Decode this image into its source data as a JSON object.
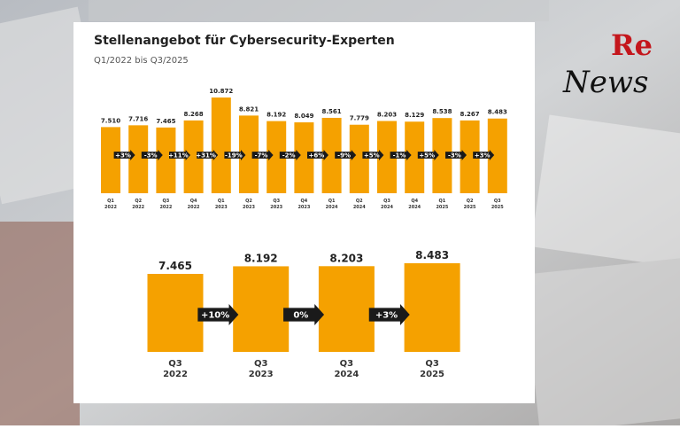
{
  "logo": {
    "re": "Re",
    "news": "News"
  },
  "chart_data": [
    {
      "type": "bar",
      "title": "Stellenangebot für Cybersecurity-Experten",
      "subtitle": "Q1/2022 bis Q3/2025",
      "color": "#f5a100",
      "categories": [
        "Q1 2022",
        "Q2 2022",
        "Q3 2022",
        "Q4 2022",
        "Q1 2023",
        "Q2 2023",
        "Q3 2023",
        "Q4 2023",
        "Q1 2024",
        "Q2 2024",
        "Q3 2024",
        "Q4 2024",
        "Q1 2025",
        "Q2 2025",
        "Q3 2025"
      ],
      "values": [
        7510,
        7716,
        7465,
        8268,
        10872,
        8821,
        8192,
        8049,
        8561,
        7779,
        8203,
        8129,
        8538,
        8267,
        8483
      ],
      "value_labels": [
        "7.510",
        "7.716",
        "7.465",
        "8.268",
        "10.872",
        "8.821",
        "8.192",
        "8.049",
        "8.561",
        "7.779",
        "8.203",
        "8.129",
        "8.538",
        "8.267",
        "8.483"
      ],
      "changes": [
        "+3%",
        "-3%",
        "+11%",
        "+31%",
        "-19%",
        "-7%",
        "-2%",
        "+6%",
        "-9%",
        "+5%",
        "-1%",
        "+5%",
        "-3%",
        "+3%"
      ]
    },
    {
      "type": "bar",
      "color": "#f5a100",
      "categories": [
        "Q3 2022",
        "Q3 2023",
        "Q3 2024",
        "Q3 2025"
      ],
      "values": [
        7465,
        8192,
        8203,
        8483
      ],
      "value_labels": [
        "7.465",
        "8.192",
        "8.203",
        "8.483"
      ],
      "changes": [
        "+10%",
        "0%",
        "+3%"
      ]
    }
  ]
}
